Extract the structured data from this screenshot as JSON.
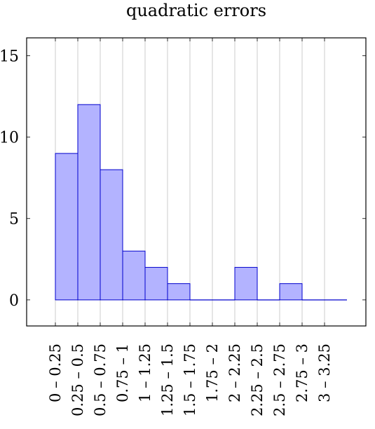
{
  "chart_data": {
    "type": "bar",
    "title": "quadratic errors",
    "xlabel": "",
    "ylabel": "",
    "categories": [
      "0 – 0.25",
      "0.25 – 0.5",
      "0.5 – 0.75",
      "0.75 – 1",
      "1 – 1.25",
      "1.25 – 1.5",
      "1.5 – 1.75",
      "1.75 – 2",
      "2 – 2.25",
      "2.25 – 2.5",
      "2.5 – 2.75",
      "2.75 – 3",
      "3 – 3.25"
    ],
    "values": [
      9,
      12,
      8,
      3,
      2,
      1,
      0,
      0,
      2,
      0,
      1,
      0,
      0
    ],
    "ylim": [
      -1.6,
      16.1
    ],
    "yticks": [
      0,
      5,
      10,
      15
    ],
    "grid": "vertical",
    "bar_fill": "#b3b3ff",
    "bar_stroke": "#0000cc",
    "grid_color": "#bfbfbf"
  }
}
